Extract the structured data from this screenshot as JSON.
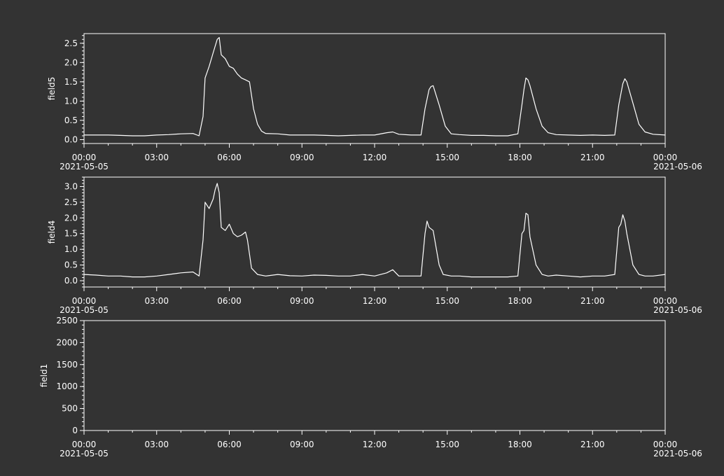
{
  "colors": {
    "background": "#333333",
    "axes": "#ffffff",
    "series": "#ffffff"
  },
  "chart_data": [
    {
      "type": "line",
      "ylabel": "field5",
      "ylim": [
        -0.1,
        2.75
      ],
      "yticks": [
        0.0,
        0.5,
        1.0,
        1.5,
        2.0,
        2.5
      ],
      "ytick_labels": [
        "0.0",
        "0.5",
        "1.0",
        "1.5",
        "2.0",
        "2.5"
      ],
      "xlim": [
        "2021-05-05 00:00",
        "2021-05-06 00:00"
      ],
      "xtick_labels": [
        "00:00",
        "03:00",
        "06:00",
        "09:00",
        "12:00",
        "15:00",
        "18:00",
        "21:00",
        "00:00"
      ],
      "xdate_labels": [
        "2021-05-05",
        "2021-05-06"
      ],
      "grid": false,
      "series": [
        {
          "x": [
            "00:00",
            "00:30",
            "01:00",
            "01:30",
            "02:00",
            "02:30",
            "03:00",
            "03:30",
            "04:00",
            "04:30",
            "04:45",
            "04:55",
            "05:00",
            "05:10",
            "05:20",
            "05:30",
            "05:35",
            "05:40",
            "05:50",
            "06:00",
            "06:10",
            "06:20",
            "06:30",
            "06:40",
            "06:50",
            "07:00",
            "07:10",
            "07:20",
            "07:30",
            "08:00",
            "08:30",
            "09:00",
            "09:30",
            "10:00",
            "10:30",
            "11:00",
            "11:30",
            "12:00",
            "12:30",
            "12:45",
            "13:00",
            "13:30",
            "13:55",
            "14:05",
            "14:15",
            "14:20",
            "14:25",
            "14:40",
            "14:55",
            "15:10",
            "15:30",
            "16:00",
            "16:30",
            "17:00",
            "17:30",
            "17:55",
            "18:05",
            "18:10",
            "18:15",
            "18:20",
            "18:25",
            "18:40",
            "18:55",
            "19:10",
            "19:30",
            "20:00",
            "20:30",
            "21:00",
            "21:30",
            "21:55",
            "22:05",
            "22:15",
            "22:20",
            "22:25",
            "22:40",
            "22:55",
            "23:10",
            "23:30",
            "24:00"
          ],
          "y": [
            0.12,
            0.12,
            0.12,
            0.11,
            0.1,
            0.1,
            0.12,
            0.13,
            0.15,
            0.16,
            0.1,
            0.6,
            1.6,
            1.9,
            2.25,
            2.6,
            2.65,
            2.2,
            2.1,
            1.9,
            1.85,
            1.7,
            1.6,
            1.55,
            1.5,
            0.8,
            0.4,
            0.22,
            0.16,
            0.15,
            0.12,
            0.12,
            0.12,
            0.11,
            0.1,
            0.11,
            0.12,
            0.12,
            0.18,
            0.2,
            0.14,
            0.12,
            0.12,
            0.8,
            1.3,
            1.38,
            1.4,
            0.9,
            0.35,
            0.15,
            0.13,
            0.11,
            0.11,
            0.1,
            0.1,
            0.15,
            0.9,
            1.3,
            1.6,
            1.55,
            1.4,
            0.8,
            0.35,
            0.18,
            0.13,
            0.12,
            0.11,
            0.12,
            0.11,
            0.12,
            0.9,
            1.45,
            1.58,
            1.5,
            0.95,
            0.4,
            0.2,
            0.14,
            0.12
          ]
        }
      ]
    },
    {
      "type": "line",
      "ylabel": "field4",
      "ylim": [
        -0.2,
        3.3
      ],
      "yticks": [
        0.0,
        0.5,
        1.0,
        1.5,
        2.0,
        2.5,
        3.0
      ],
      "ytick_labels": [
        "0.0",
        "0.5",
        "1.0",
        "1.5",
        "2.0",
        "2.5",
        "3.0"
      ],
      "xlim": [
        "2021-05-05 00:00",
        "2021-05-06 00:00"
      ],
      "xtick_labels": [
        "00:00",
        "03:00",
        "06:00",
        "09:00",
        "12:00",
        "15:00",
        "18:00",
        "21:00",
        "00:00"
      ],
      "xdate_labels": [
        "2021-05-05",
        "2021-05-06"
      ],
      "grid": false,
      "series": [
        {
          "x": [
            "00:00",
            "00:30",
            "01:00",
            "01:30",
            "02:00",
            "02:30",
            "03:00",
            "03:30",
            "04:00",
            "04:30",
            "04:45",
            "04:55",
            "05:00",
            "05:10",
            "05:20",
            "05:25",
            "05:30",
            "05:35",
            "05:40",
            "05:50",
            "06:00",
            "06:10",
            "06:20",
            "06:30",
            "06:40",
            "06:45",
            "06:55",
            "07:10",
            "07:30",
            "08:00",
            "08:30",
            "09:00",
            "09:30",
            "10:00",
            "10:30",
            "11:00",
            "11:30",
            "12:00",
            "12:30",
            "12:45",
            "13:00",
            "13:30",
            "13:55",
            "14:05",
            "14:10",
            "14:15",
            "14:25",
            "14:40",
            "14:50",
            "15:10",
            "15:30",
            "16:00",
            "16:30",
            "17:00",
            "17:30",
            "17:55",
            "18:05",
            "18:10",
            "18:15",
            "18:20",
            "18:25",
            "18:40",
            "18:55",
            "19:10",
            "19:30",
            "20:00",
            "20:30",
            "21:00",
            "21:30",
            "21:55",
            "22:05",
            "22:10",
            "22:15",
            "22:20",
            "22:25",
            "22:40",
            "22:55",
            "23:10",
            "23:30",
            "24:00"
          ],
          "y": [
            0.2,
            0.18,
            0.15,
            0.15,
            0.12,
            0.12,
            0.15,
            0.2,
            0.25,
            0.28,
            0.15,
            1.3,
            2.5,
            2.3,
            2.6,
            2.9,
            3.1,
            2.8,
            1.7,
            1.6,
            1.8,
            1.5,
            1.4,
            1.45,
            1.55,
            1.3,
            0.4,
            0.2,
            0.15,
            0.2,
            0.16,
            0.15,
            0.18,
            0.17,
            0.15,
            0.15,
            0.2,
            0.15,
            0.25,
            0.35,
            0.15,
            0.15,
            0.15,
            1.5,
            1.9,
            1.7,
            1.6,
            0.5,
            0.2,
            0.15,
            0.15,
            0.12,
            0.12,
            0.12,
            0.12,
            0.15,
            1.5,
            1.6,
            2.15,
            2.1,
            1.4,
            0.5,
            0.2,
            0.15,
            0.18,
            0.15,
            0.12,
            0.15,
            0.15,
            0.2,
            1.7,
            1.8,
            2.1,
            1.9,
            1.5,
            0.5,
            0.2,
            0.15,
            0.15,
            0.2
          ]
        }
      ]
    },
    {
      "type": "line",
      "ylabel": "field1",
      "ylim": [
        0,
        2500
      ],
      "yticks": [
        0,
        500,
        1000,
        1500,
        2000,
        2500
      ],
      "ytick_labels": [
        "0",
        "500",
        "1000",
        "1500",
        "2000",
        "2500"
      ],
      "xlim": [
        "2021-05-05 00:00",
        "2021-05-06 00:00"
      ],
      "xtick_labels": [
        "00:00",
        "03:00",
        "06:00",
        "09:00",
        "12:00",
        "15:00",
        "18:00",
        "21:00",
        "00:00"
      ],
      "xdate_labels": [
        "2021-05-05",
        "2021-05-06"
      ],
      "grid": false,
      "series": []
    }
  ]
}
